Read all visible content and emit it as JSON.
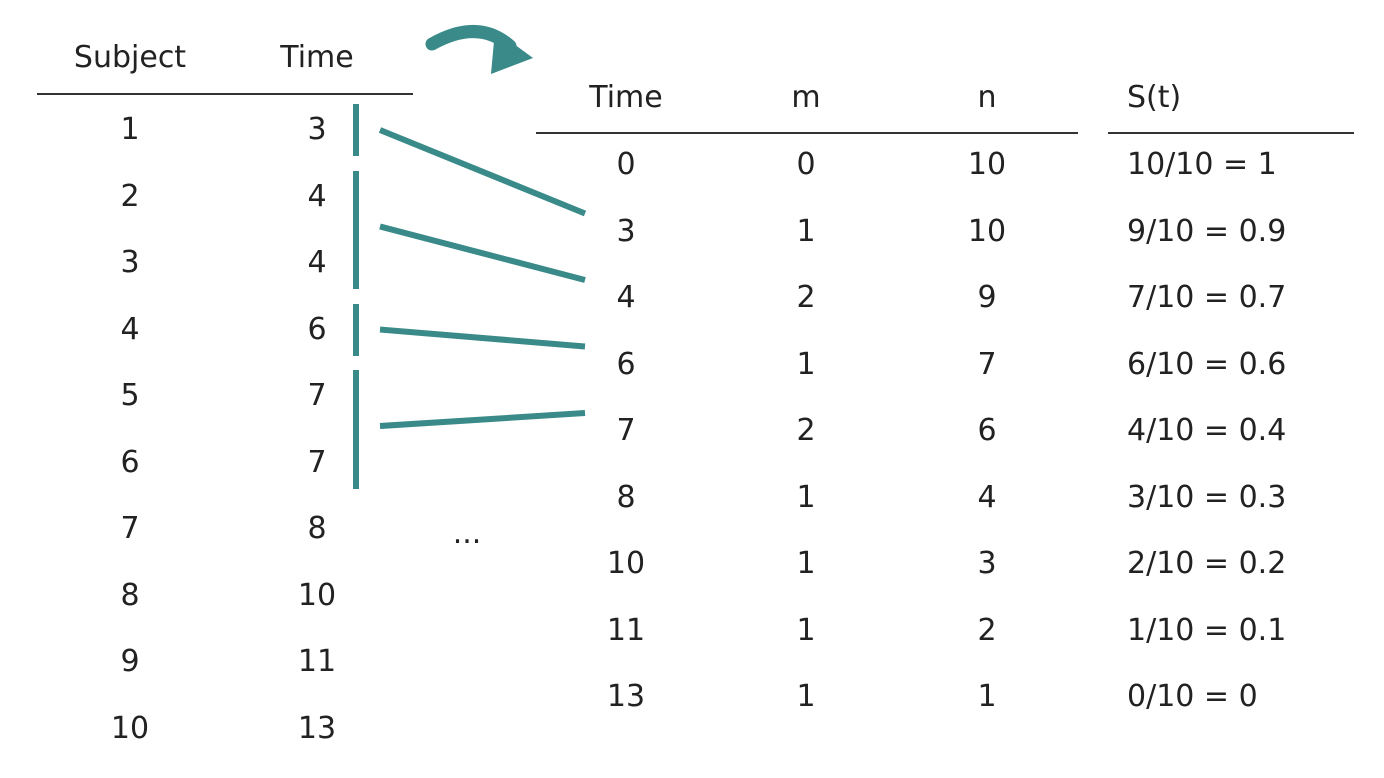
{
  "colors": {
    "accent": "#3a8a8a",
    "text": "#222222",
    "rule": "#333333"
  },
  "left_table": {
    "headers": [
      "Subject",
      "Time"
    ],
    "rows": [
      [
        "1",
        "3"
      ],
      [
        "2",
        "4"
      ],
      [
        "3",
        "4"
      ],
      [
        "4",
        "6"
      ],
      [
        "5",
        "7"
      ],
      [
        "6",
        "7"
      ],
      [
        "7",
        "8"
      ],
      [
        "8",
        "10"
      ],
      [
        "9",
        "11"
      ],
      [
        "10",
        "13"
      ]
    ]
  },
  "ellipsis": "...",
  "right_table": {
    "headers": [
      "Time",
      "m",
      "n",
      "S(t)"
    ],
    "rows": [
      [
        "0",
        "0",
        "10",
        "10/10 =  1"
      ],
      [
        "3",
        "1",
        "10",
        "9/10 = 0.9"
      ],
      [
        "4",
        "2",
        "9",
        "7/10 = 0.7"
      ],
      [
        "6",
        "1",
        "7",
        "6/10 = 0.6"
      ],
      [
        "7",
        "2",
        "6",
        "4/10 = 0.4"
      ],
      [
        "8",
        "1",
        "4",
        "3/10 = 0.3"
      ],
      [
        "10",
        "1",
        "3",
        "2/10 = 0.2"
      ],
      [
        "11",
        "1",
        "2",
        "1/10 = 0.1"
      ],
      [
        "13",
        "1",
        "1",
        "0/10 =  0"
      ]
    ]
  },
  "groups": [
    {
      "from_rows": [
        0
      ],
      "to_row": 1
    },
    {
      "from_rows": [
        1,
        2
      ],
      "to_row": 2
    },
    {
      "from_rows": [
        3
      ],
      "to_row": 3
    },
    {
      "from_rows": [
        4,
        5
      ],
      "to_row": 4
    }
  ],
  "arrow_icon": "curved-arrow-icon"
}
